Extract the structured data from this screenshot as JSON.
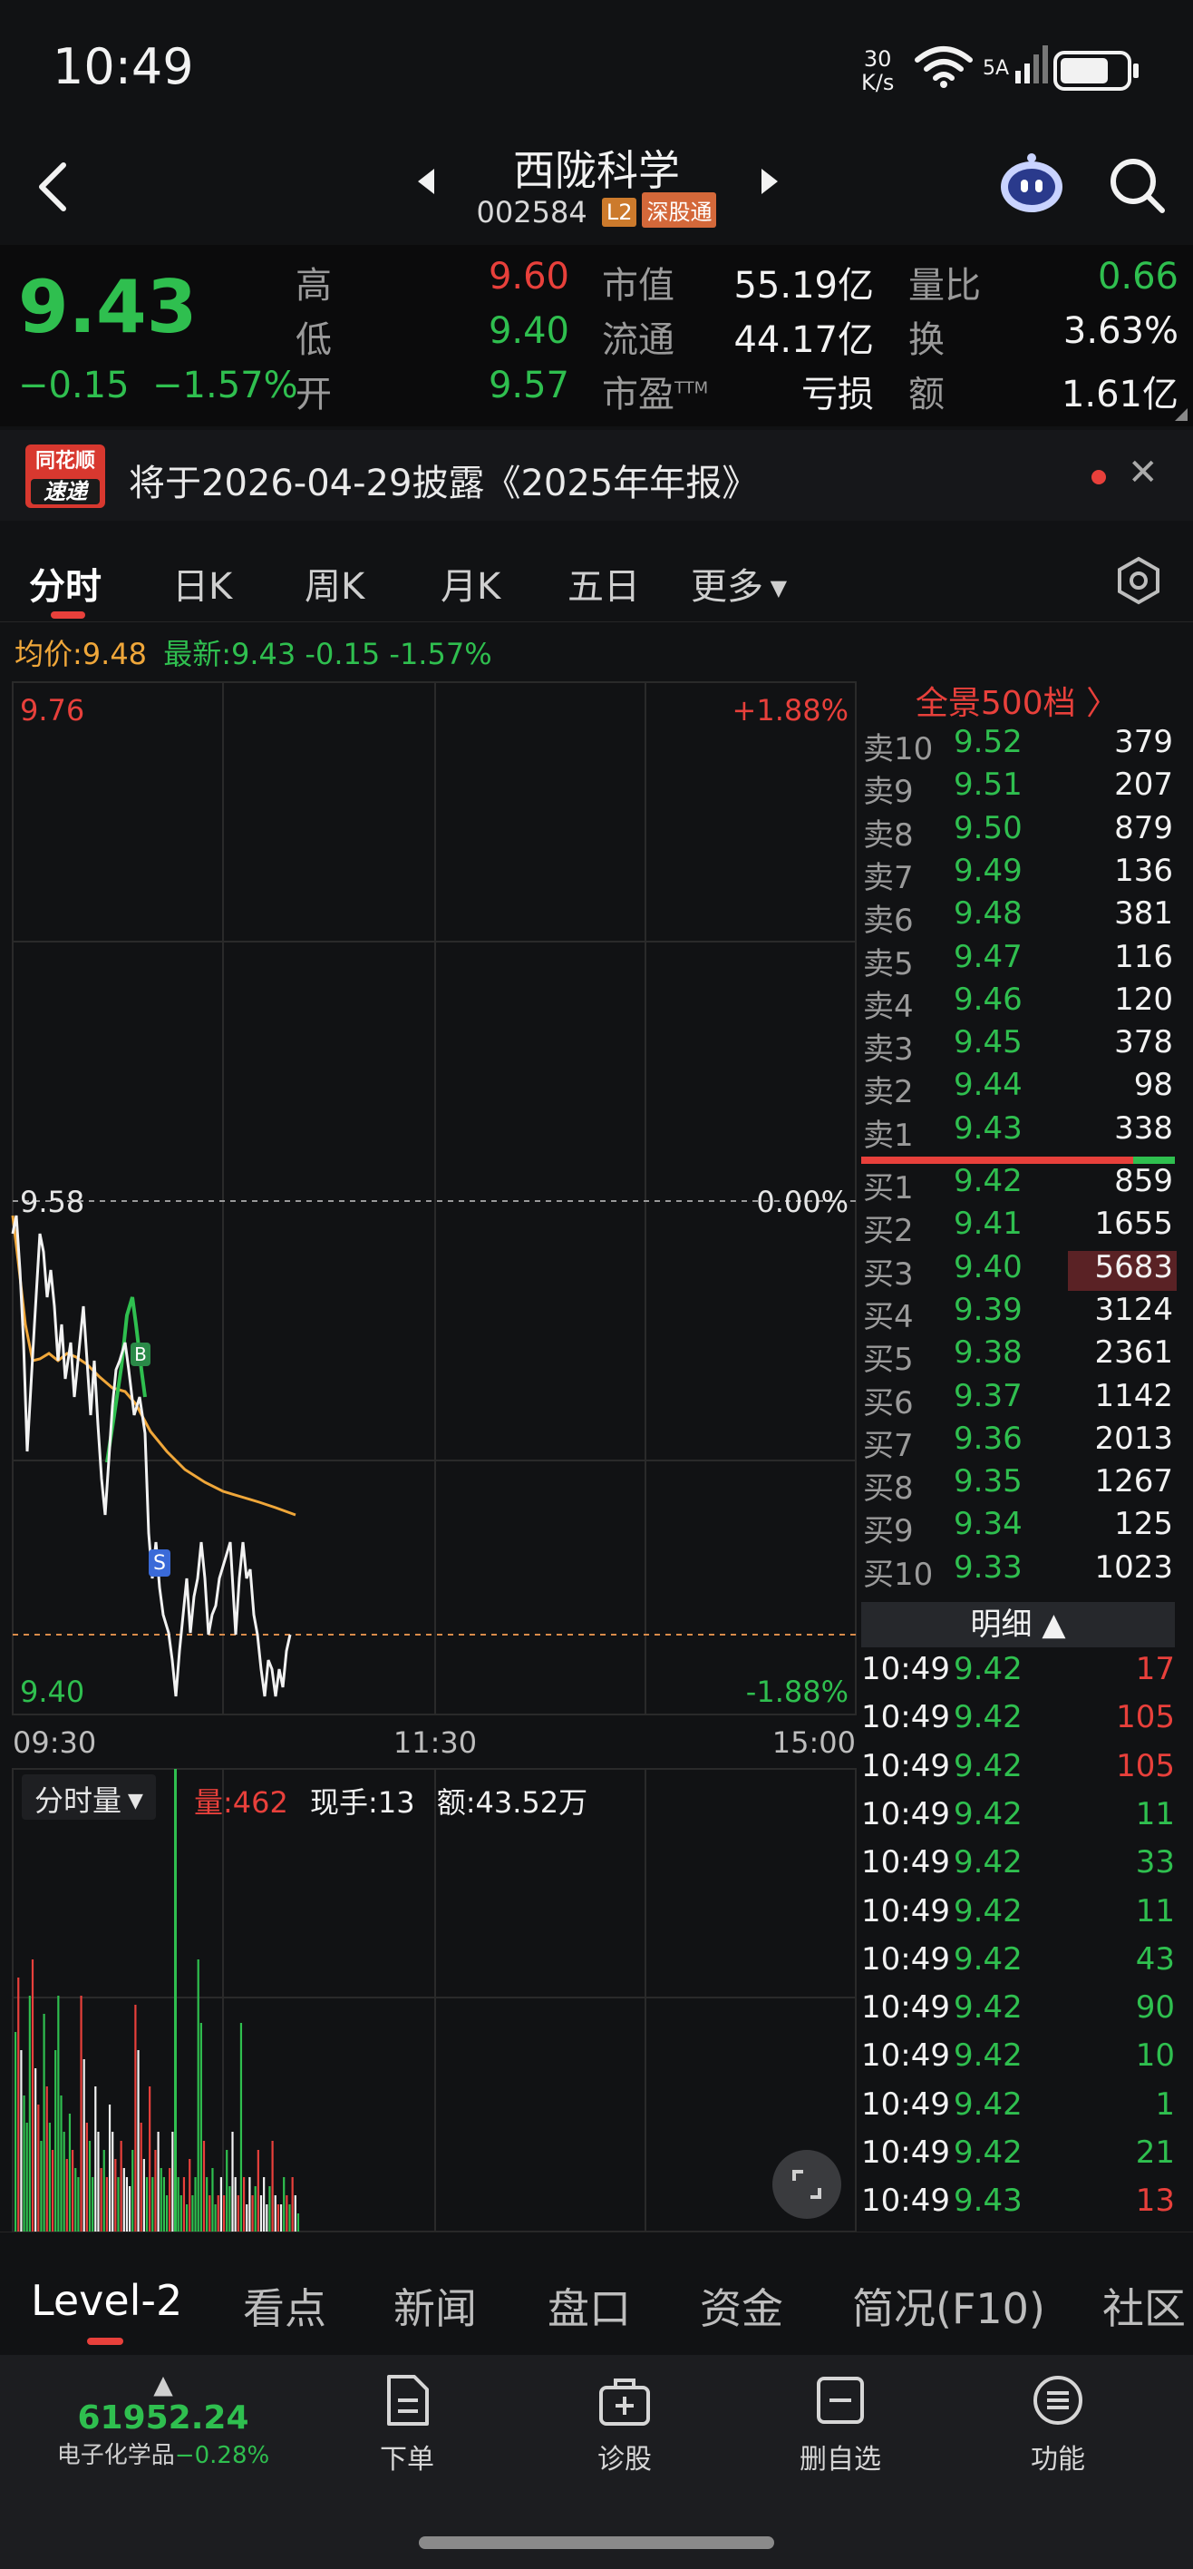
{
  "status_bar": {
    "time": "10:49",
    "net_speed_value": "30",
    "net_speed_unit": "K/s",
    "signal": "5A"
  },
  "header": {
    "stock_name": "西陇科学",
    "stock_code": "002584",
    "tag_l2": "L2",
    "tag_connect": "深股通"
  },
  "quote": {
    "last_price": "9.43",
    "change": "−0.15",
    "change_pct": "−1.57%",
    "high_label": "高",
    "high": "9.60",
    "low_label": "低",
    "low": "9.40",
    "open_label": "开",
    "open": "9.57",
    "mktcap_label": "市值",
    "mktcap": "55.19亿",
    "float_label": "流通",
    "float": "44.17亿",
    "pe_label": "市盈",
    "pe_sup": "TTM",
    "pe": "亏损",
    "vol_ratio_label": "量比",
    "vol_ratio": "0.66",
    "turnover_label": "换",
    "turnover": "3.63%",
    "amount_label": "额",
    "amount": "1.61亿"
  },
  "announcement": {
    "logo_top": "同花顺",
    "logo_bottom": "速递",
    "text": "将于2026-04-29披露《2025年年报》"
  },
  "chart_tabs": [
    "分时",
    "日K",
    "周K",
    "月K",
    "五日",
    "更多"
  ],
  "avg_line": {
    "avg_label": "均价:9.48",
    "latest_label": "最新:9.43 -0.15 -1.57%"
  },
  "chart": {
    "y_top": "9.76",
    "y_mid": "9.58",
    "y_bottom": "9.40",
    "pct_top": "+1.88%",
    "pct_mid": "0.00%",
    "pct_bottom": "-1.88%",
    "x_labels": [
      "09:30",
      "11:30",
      "15:00"
    ],
    "marker_b": "B",
    "marker_s": "S"
  },
  "volume": {
    "selector": "分时量",
    "vol": "量:462",
    "current": "现手:13",
    "amount": "额:43.52万"
  },
  "orderbook": {
    "panorama": "全景500档 〉",
    "asks": [
      {
        "label": "卖10",
        "price": "9.52",
        "vol": "379"
      },
      {
        "label": "卖9",
        "price": "9.51",
        "vol": "207"
      },
      {
        "label": "卖8",
        "price": "9.50",
        "vol": "879"
      },
      {
        "label": "卖7",
        "price": "9.49",
        "vol": "136"
      },
      {
        "label": "卖6",
        "price": "9.48",
        "vol": "381"
      },
      {
        "label": "卖5",
        "price": "9.47",
        "vol": "116"
      },
      {
        "label": "卖4",
        "price": "9.46",
        "vol": "120"
      },
      {
        "label": "卖3",
        "price": "9.45",
        "vol": "378"
      },
      {
        "label": "卖2",
        "price": "9.44",
        "vol": "98"
      },
      {
        "label": "卖1",
        "price": "9.43",
        "vol": "338"
      }
    ],
    "bids": [
      {
        "label": "买1",
        "price": "9.42",
        "vol": "859"
      },
      {
        "label": "买2",
        "price": "9.41",
        "vol": "1655"
      },
      {
        "label": "买3",
        "price": "9.40",
        "vol": "5683"
      },
      {
        "label": "买4",
        "price": "9.39",
        "vol": "3124"
      },
      {
        "label": "买5",
        "price": "9.38",
        "vol": "2361"
      },
      {
        "label": "买6",
        "price": "9.37",
        "vol": "1142"
      },
      {
        "label": "买7",
        "price": "9.36",
        "vol": "2013"
      },
      {
        "label": "买8",
        "price": "9.35",
        "vol": "1267"
      },
      {
        "label": "买9",
        "price": "9.34",
        "vol": "125"
      },
      {
        "label": "买10",
        "price": "9.33",
        "vol": "1023"
      }
    ],
    "detail_label": "明细 ▲",
    "ticks": [
      {
        "time": "10:49",
        "price": "9.42",
        "vol": "17",
        "side": "red"
      },
      {
        "time": "10:49",
        "price": "9.42",
        "vol": "105",
        "side": "red"
      },
      {
        "time": "10:49",
        "price": "9.42",
        "vol": "105",
        "side": "red"
      },
      {
        "time": "10:49",
        "price": "9.42",
        "vol": "11",
        "side": "green"
      },
      {
        "time": "10:49",
        "price": "9.42",
        "vol": "33",
        "side": "green"
      },
      {
        "time": "10:49",
        "price": "9.42",
        "vol": "11",
        "side": "green"
      },
      {
        "time": "10:49",
        "price": "9.42",
        "vol": "43",
        "side": "green"
      },
      {
        "time": "10:49",
        "price": "9.42",
        "vol": "90",
        "side": "green"
      },
      {
        "time": "10:49",
        "price": "9.42",
        "vol": "10",
        "side": "green"
      },
      {
        "time": "10:49",
        "price": "9.42",
        "vol": "1",
        "side": "green"
      },
      {
        "time": "10:49",
        "price": "9.42",
        "vol": "21",
        "side": "green"
      },
      {
        "time": "10:49",
        "price": "9.43",
        "vol": "13",
        "side": "red"
      }
    ]
  },
  "bottom_tabs": [
    "Level-2",
    "看点",
    "新闻",
    "盘口",
    "资金",
    "简况(F10)",
    "社区"
  ],
  "footer": {
    "index_value": "61952.24",
    "index_name": "电子化学品",
    "index_change": "−0.28%",
    "nav": [
      "下单",
      "诊股",
      "删自选",
      "功能"
    ]
  },
  "colors": {
    "up": "#e8403b",
    "down": "#2fbf4f",
    "avg": "#f0a73a",
    "bg": "#111214"
  }
}
